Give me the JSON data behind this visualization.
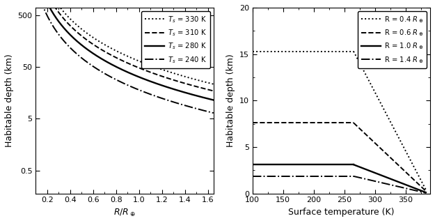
{
  "left_panel": {
    "xlabel_latex": "$R/R_\\oplus$",
    "ylabel": "Habitable depth (km)",
    "ylim_log": [
      0.18,
      700
    ],
    "xlim": [
      0.1,
      1.65
    ],
    "xticks": [
      0.2,
      0.4,
      0.6,
      0.8,
      1.0,
      1.2,
      1.4,
      1.6
    ],
    "yticks_log": [
      0.5,
      5,
      50,
      500
    ],
    "series_left": [
      {
        "A": 65.0,
        "exp": 2.05,
        "linestyle": "dotted",
        "lw": 1.4
      },
      {
        "A": 48.0,
        "exp": 2.05,
        "linestyle": "dashed",
        "lw": 1.4
      },
      {
        "A": 32.0,
        "exp": 2.05,
        "linestyle": "solid",
        "lw": 1.7
      },
      {
        "A": 18.0,
        "exp": 2.05,
        "linestyle": "dashdot",
        "lw": 1.4
      }
    ],
    "legend_labels": [
      "$T_s$ = 330 K",
      "$T_s$ = 310 K",
      "$T_s$ = 280 K",
      "$T_s$ = 240 K"
    ]
  },
  "right_panel": {
    "xlabel": "Surface temperature (K)",
    "ylabel": "Habitable depth (km)",
    "ylim": [
      0,
      20
    ],
    "xlim": [
      100,
      390
    ],
    "xticks": [
      100,
      150,
      200,
      250,
      300,
      350
    ],
    "yticks": [
      0,
      5,
      10,
      15,
      20
    ],
    "series_right": [
      {
        "linestyle": "dotted",
        "lw": 1.4,
        "flat_val": 15.3,
        "flat_end_T": 265,
        "drop_end_T": 383,
        "drop_end_val": 0.4
      },
      {
        "linestyle": "dashed",
        "lw": 1.4,
        "flat_val": 7.6,
        "flat_end_T": 265,
        "drop_end_T": 383,
        "drop_end_val": 0.25
      },
      {
        "linestyle": "solid",
        "lw": 1.7,
        "flat_val": 3.1,
        "flat_end_T": 265,
        "drop_end_T": 383,
        "drop_end_val": 0.1
      },
      {
        "linestyle": "dashdot",
        "lw": 1.4,
        "flat_val": 1.85,
        "flat_end_T": 265,
        "drop_end_T": 383,
        "drop_end_val": 0.05
      }
    ],
    "legend_labels": [
      "R = 0.4 $R_\\oplus$",
      "R = 0.6 $R_\\oplus$",
      "R = 1.0 $R_\\oplus$",
      "R = 1.4 $R_\\oplus$"
    ]
  },
  "color": "#000000",
  "bg_color": "#ffffff"
}
